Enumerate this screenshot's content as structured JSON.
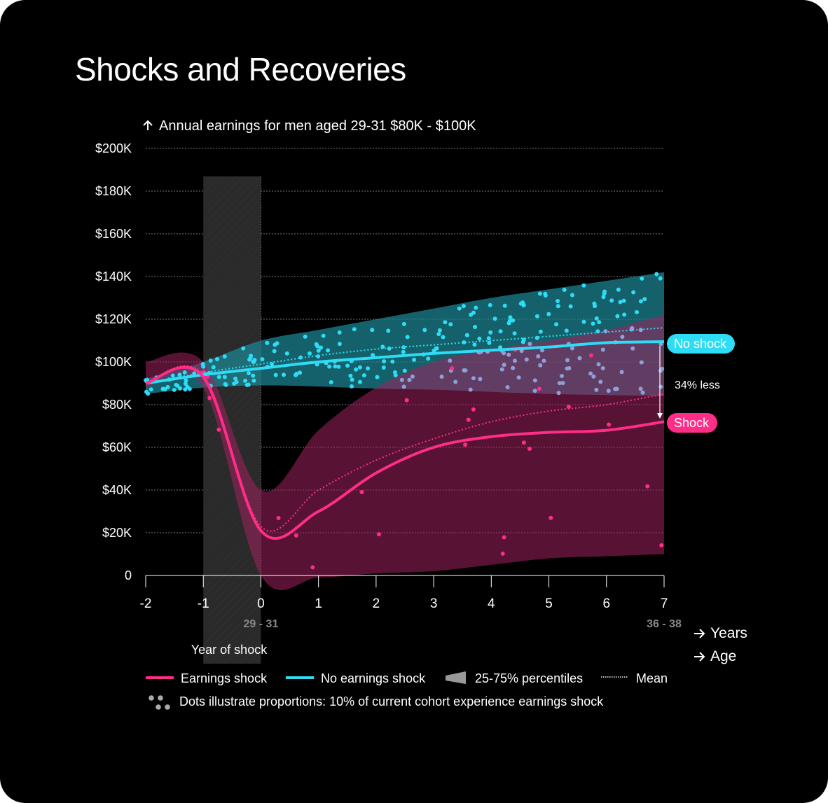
{
  "title": "Shocks and Recoveries",
  "chart_data": {
    "type": "line",
    "title": "Shocks and Recoveries",
    "ylabel": "Annual earnings for men aged 29-31 $80K - $100K",
    "ylabel_icon": "arrow-up-icon",
    "xlabel_years": "Years",
    "xlabel_age": "Age",
    "xlabel_icon": "arrow-right-icon",
    "xlim": [
      -2,
      7
    ],
    "ylim": [
      0,
      200
    ],
    "y_ticks": [
      0,
      20,
      40,
      60,
      80,
      100,
      120,
      140,
      160,
      180,
      200
    ],
    "y_tick_labels": [
      "0",
      "$20K",
      "$40K",
      "$60K",
      "$80K",
      "$100K",
      "$120K",
      "$140K",
      "$160K",
      "$180K",
      "$200K"
    ],
    "x_ticks": [
      -2,
      -1,
      0,
      1,
      2,
      3,
      4,
      5,
      6,
      7
    ],
    "x_tick_labels": [
      "-2",
      "-1",
      "0",
      "1",
      "2",
      "3",
      "4",
      "5",
      "6",
      "7"
    ],
    "age_labels": [
      {
        "x": 0,
        "label": "29 - 31"
      },
      {
        "x": 7,
        "label": "36 - 38"
      }
    ],
    "grid": true,
    "shock_region": {
      "x": [
        -1,
        0
      ],
      "label": "Year of shock"
    },
    "x": [
      -2,
      -1,
      0,
      1,
      2,
      3,
      4,
      5,
      6,
      7
    ],
    "series": [
      {
        "name": "Earnings shock",
        "color": "#ff2d87",
        "median": [
          90,
          93,
          21,
          30,
          48,
          60,
          65,
          67,
          68,
          72
        ],
        "mean": [
          90,
          94,
          23,
          40,
          54,
          64,
          72,
          77,
          80,
          85
        ],
        "p25": [
          88,
          88,
          0,
          -1,
          1,
          2,
          5,
          8,
          9,
          10
        ],
        "p75": [
          100,
          100,
          40,
          68,
          88,
          100,
          106,
          110,
          115,
          122
        ],
        "end_label": "Shock"
      },
      {
        "name": "No earnings shock",
        "color": "#2fdcf5",
        "median": [
          90,
          94,
          97,
          100,
          102,
          104,
          105.5,
          107,
          109,
          109.5
        ],
        "mean": [
          90,
          95,
          99,
          103,
          106,
          108,
          110,
          112,
          114,
          116
        ],
        "p25": [
          85,
          88,
          89,
          88.5,
          87.5,
          87,
          86,
          85,
          84.5,
          84
        ],
        "p75": [
          92,
          100,
          110,
          115,
          120,
          125,
          130,
          134,
          138,
          142
        ],
        "end_label": "No shock"
      }
    ],
    "annotation": "34% less",
    "legend": {
      "placement": "bottom",
      "items": [
        {
          "label": "Earnings shock",
          "icon": "pink-line"
        },
        {
          "label": "No earnings shock",
          "icon": "cyan-line"
        },
        {
          "label": "25-75% percentiles",
          "icon": "band-wedge"
        },
        {
          "label": "Mean",
          "icon": "dotted-line"
        }
      ],
      "dots_note": "Dots illustrate proportions: 10% of current cohort experience earnings shock"
    }
  }
}
